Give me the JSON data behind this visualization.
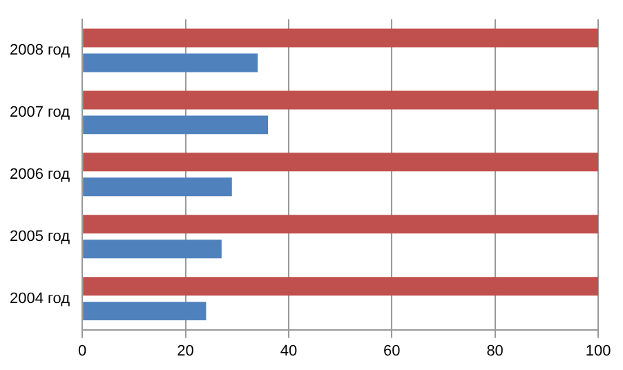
{
  "chart_data": {
    "type": "bar",
    "orientation": "horizontal",
    "categories": [
      "2008 год",
      "2007 год",
      "2006 год",
      "2005 год",
      "2004 год"
    ],
    "series": [
      {
        "color": "#c0504d",
        "values": [
          100,
          100,
          100,
          100,
          100
        ]
      },
      {
        "color": "#4f81bd",
        "values": [
          34,
          36,
          29,
          27,
          24
        ]
      }
    ],
    "xlim": [
      0,
      100
    ],
    "xticks": [
      0,
      20,
      40,
      60,
      80,
      100
    ],
    "grid": "x",
    "legend": false
  }
}
